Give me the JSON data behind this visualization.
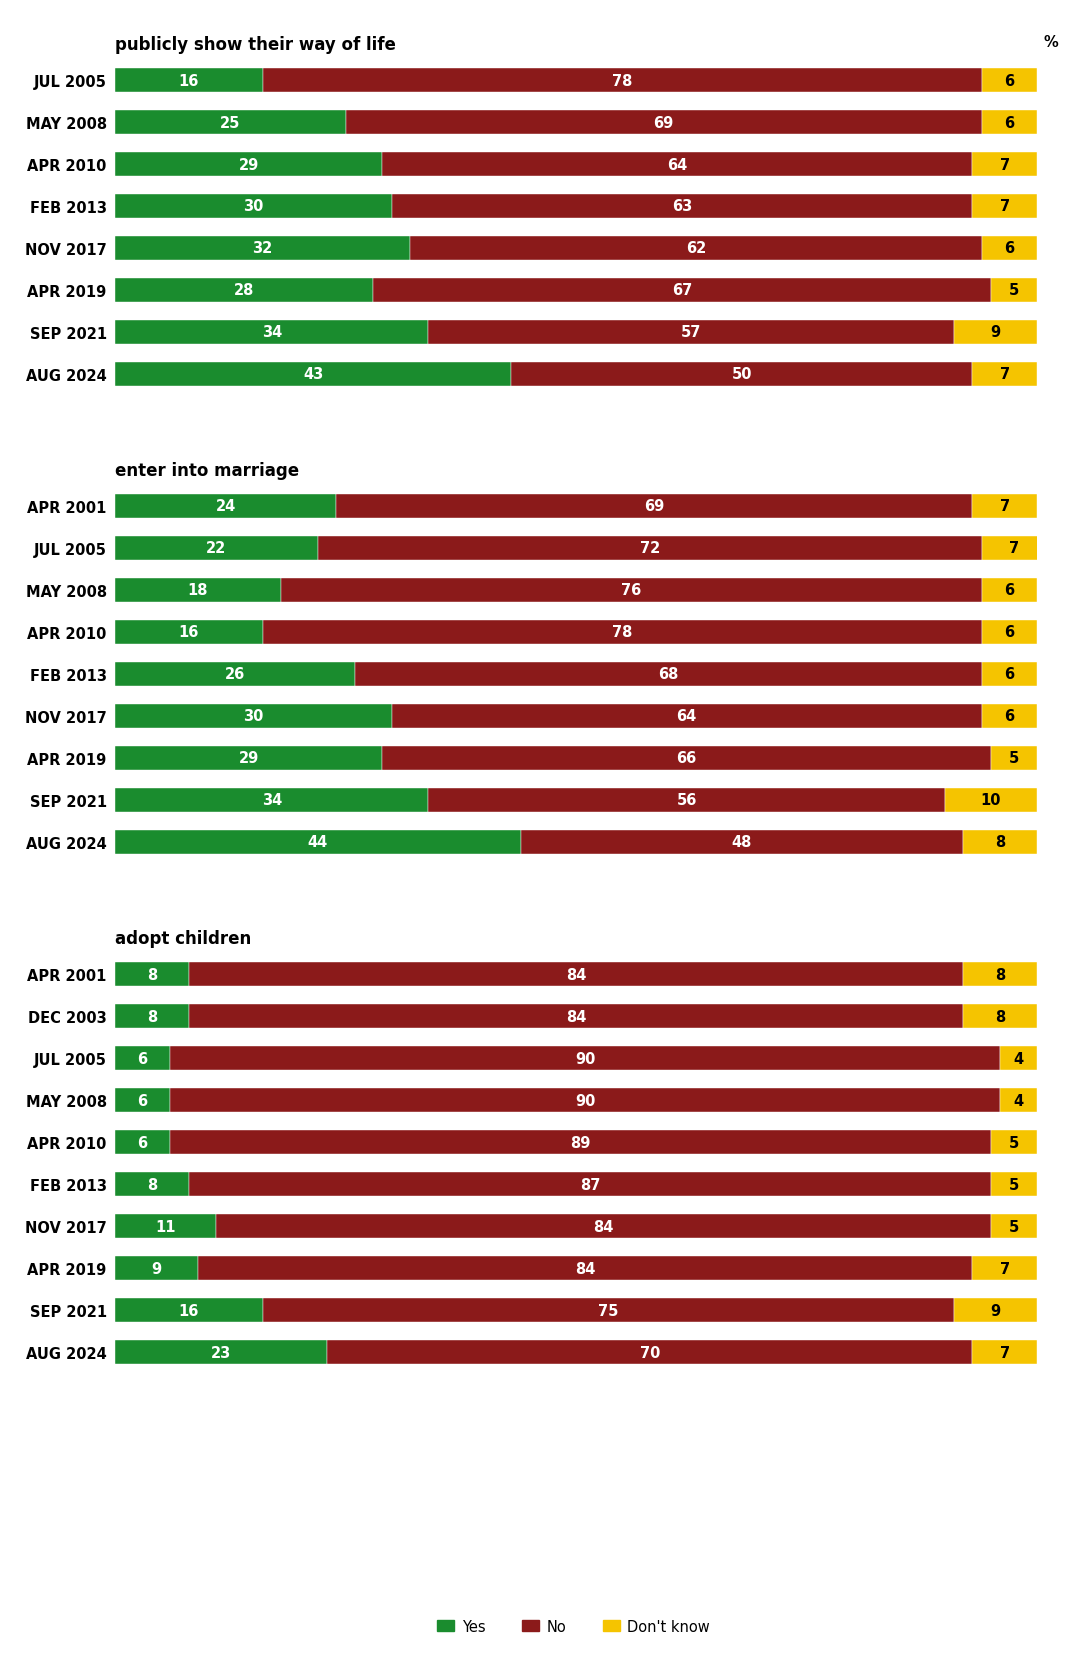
{
  "sections": [
    {
      "title": "publicly show their way of life",
      "rows": [
        {
          "label": "JUL 2005",
          "yes": 16,
          "no": 78,
          "dk": 6
        },
        {
          "label": "MAY 2008",
          "yes": 25,
          "no": 69,
          "dk": 6
        },
        {
          "label": "APR 2010",
          "yes": 29,
          "no": 64,
          "dk": 7
        },
        {
          "label": "FEB 2013",
          "yes": 30,
          "no": 63,
          "dk": 7
        },
        {
          "label": "NOV 2017",
          "yes": 32,
          "no": 62,
          "dk": 6
        },
        {
          "label": "APR 2019",
          "yes": 28,
          "no": 67,
          "dk": 5
        },
        {
          "label": "SEP 2021",
          "yes": 34,
          "no": 57,
          "dk": 9
        },
        {
          "label": "AUG 2024",
          "yes": 43,
          "no": 50,
          "dk": 7
        }
      ]
    },
    {
      "title": "enter into marriage",
      "rows": [
        {
          "label": "APR 2001",
          "yes": 24,
          "no": 69,
          "dk": 7
        },
        {
          "label": "JUL 2005",
          "yes": 22,
          "no": 72,
          "dk": 7
        },
        {
          "label": "MAY 2008",
          "yes": 18,
          "no": 76,
          "dk": 6
        },
        {
          "label": "APR 2010",
          "yes": 16,
          "no": 78,
          "dk": 6
        },
        {
          "label": "FEB 2013",
          "yes": 26,
          "no": 68,
          "dk": 6
        },
        {
          "label": "NOV 2017",
          "yes": 30,
          "no": 64,
          "dk": 6
        },
        {
          "label": "APR 2019",
          "yes": 29,
          "no": 66,
          "dk": 5
        },
        {
          "label": "SEP 2021",
          "yes": 34,
          "no": 56,
          "dk": 10
        },
        {
          "label": "AUG 2024",
          "yes": 44,
          "no": 48,
          "dk": 8
        }
      ]
    },
    {
      "title": "adopt children",
      "rows": [
        {
          "label": "APR 2001",
          "yes": 8,
          "no": 84,
          "dk": 8
        },
        {
          "label": "DEC 2003",
          "yes": 8,
          "no": 84,
          "dk": 8
        },
        {
          "label": "JUL 2005",
          "yes": 6,
          "no": 90,
          "dk": 4
        },
        {
          "label": "MAY 2008",
          "yes": 6,
          "no": 90,
          "dk": 4
        },
        {
          "label": "APR 2010",
          "yes": 6,
          "no": 89,
          "dk": 5
        },
        {
          "label": "FEB 2013",
          "yes": 8,
          "no": 87,
          "dk": 5
        },
        {
          "label": "NOV 2017",
          "yes": 11,
          "no": 84,
          "dk": 5
        },
        {
          "label": "APR 2019",
          "yes": 9,
          "no": 84,
          "dk": 7
        },
        {
          "label": "SEP 2021",
          "yes": 16,
          "no": 75,
          "dk": 9
        },
        {
          "label": "AUG 2024",
          "yes": 23,
          "no": 70,
          "dk": 7
        }
      ]
    }
  ],
  "colors": {
    "yes": "#1a8c2e",
    "no": "#8b1a1a",
    "dk": "#f5c400"
  },
  "yes_text_color": "#ffffff",
  "no_text_color": "#ffffff",
  "dk_text_color": "#000000",
  "bar_height": 0.55,
  "label_fontsize": 10.5,
  "value_fontsize": 10.5,
  "title_fontsize": 12,
  "pct_label": "%",
  "legend_labels": [
    "Yes",
    "No",
    "Don't know"
  ],
  "fig_width": 10.82,
  "fig_height": 16.56
}
